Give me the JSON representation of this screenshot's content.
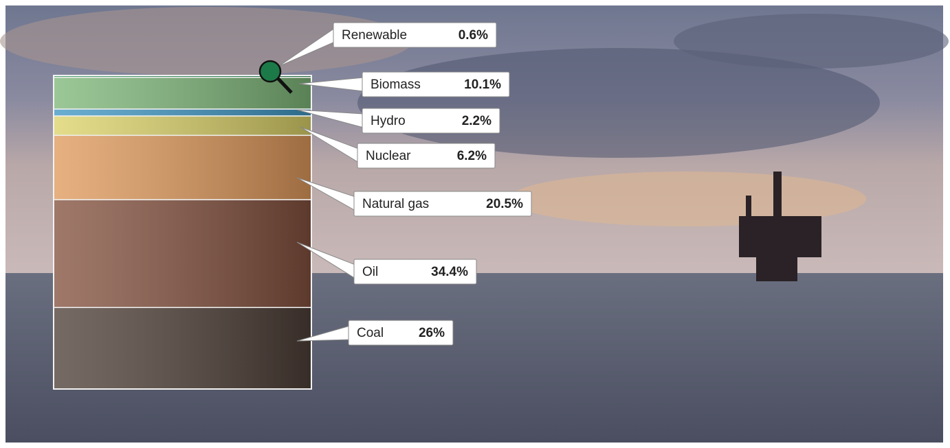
{
  "chart_data": {
    "type": "stacked-bar",
    "ylim": [
      0,
      100
    ],
    "series": [
      {
        "name": "Coal",
        "color": "#4f4038",
        "values": [
          26
        ],
        "value_labels": [
          "26%"
        ]
      },
      {
        "name": "Oil",
        "color": "#84523f",
        "values": [
          34.4
        ],
        "value_labels": [
          "34.4%"
        ]
      },
      {
        "name": "Natural gas",
        "color": "#e09a5c",
        "values": [
          20.5
        ],
        "value_labels": [
          "20.5%"
        ]
      },
      {
        "name": "Nuclear",
        "color": "#dcd36a",
        "values": [
          6.2
        ],
        "value_labels": [
          "6.2%"
        ]
      },
      {
        "name": "Hydro",
        "color": "#3f97c4",
        "values": [
          2.2
        ],
        "value_labels": [
          "2.2%"
        ]
      },
      {
        "name": "Biomass",
        "color": "#7fb87a",
        "values": [
          10.1
        ],
        "value_labels": [
          "10.1%"
        ]
      },
      {
        "name": "Renewable",
        "color": "#1f8a4e",
        "values": [
          0.6
        ],
        "value_labels": [
          "0.6%"
        ]
      }
    ]
  }
}
